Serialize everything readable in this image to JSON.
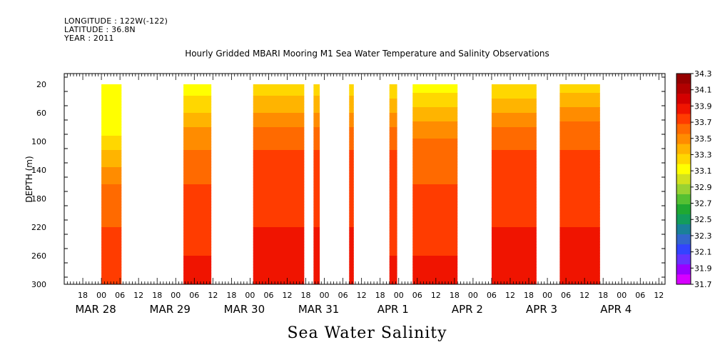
{
  "header": {
    "longitude": "LONGITUDE : 122W(-122)",
    "latitude": "LATITUDE : 36.8N",
    "year": "YEAR : 2011"
  },
  "chart_data": {
    "type": "heatmap",
    "title": "Hourly Gridded MBARI Mooring M1 Sea Water Temperature and Salinity Observations",
    "variable_label": "Sea Water Salinity",
    "ylabel": "DEPTH (m)",
    "y_axis": {
      "inverted": true,
      "ylim": [
        300,
        5
      ],
      "ticks": [
        20,
        60,
        100,
        140,
        180,
        220,
        260,
        300
      ]
    },
    "x_axis": {
      "units": "hours since 2011-03-27 12:00",
      "xlim": [
        0,
        194
      ],
      "hour_ticks": [
        "18",
        "00",
        "06",
        "12",
        "18",
        "00",
        "06",
        "12",
        "18",
        "00",
        "06",
        "12",
        "18",
        "00",
        "06",
        "12",
        "18",
        "00",
        "06",
        "12",
        "18",
        "00",
        "06",
        "12",
        "18",
        "00",
        "06",
        "12",
        "18",
        "00",
        "06",
        "12"
      ],
      "date_labels": [
        "MAR 28",
        "MAR 29",
        "MAR 30",
        "MAR 31",
        "APR  1",
        "APR  2",
        "APR  3",
        "APR  4"
      ]
    },
    "colorbar": {
      "levels": [
        31.7,
        31.9,
        32.1,
        32.3,
        32.5,
        32.7,
        32.9,
        33.1,
        33.3,
        33.5,
        33.7,
        33.9,
        34.1,
        34.3
      ],
      "labels": [
        "34.3",
        "34.1",
        "33.9",
        "33.7",
        "33.5",
        "33.3",
        "33.1",
        "32.9",
        "32.7",
        "32.5",
        "32.3",
        "32.1",
        "31.9",
        "31.7"
      ],
      "colors": [
        "#d600ff",
        "#9900ff",
        "#6633ff",
        "#3344ff",
        "#3366cc",
        "#1a8099",
        "#139c5c",
        "#1fa832",
        "#55c032",
        "#99d232",
        "#d2e11e",
        "#ffff00",
        "#ffd700",
        "#ffb400",
        "#ff8c00",
        "#ff6a00",
        "#ff3c00",
        "#f01400",
        "#d40000",
        "#b20000",
        "#960000"
      ]
    },
    "data_segments": [
      {
        "start": 12,
        "end": 18.5,
        "profile": [
          33.1,
          33.1,
          33.2,
          33.5,
          33.9,
          34.1,
          34.2,
          34.3
        ]
      },
      {
        "start": 38.5,
        "end": 47.5,
        "profile": [
          33.2,
          33.4,
          33.7,
          33.9,
          34.1,
          34.1,
          34.3,
          34.3
        ]
      },
      {
        "start": 61,
        "end": 77.5,
        "profile": [
          33.4,
          33.6,
          33.9,
          34.1,
          34.2,
          34.3,
          34.3,
          34.4
        ]
      },
      {
        "start": 80.5,
        "end": 82.5,
        "profile": [
          33.4,
          33.6,
          33.9,
          34.1,
          34.2,
          34.3,
          34.3,
          34.4
        ]
      },
      {
        "start": 92,
        "end": 93.5,
        "profile": [
          33.4,
          33.6,
          33.9,
          34.1,
          34.2,
          34.3,
          34.3,
          34.3
        ]
      },
      {
        "start": 105,
        "end": 107.5,
        "profile": [
          33.3,
          33.6,
          33.9,
          34.1,
          34.2,
          34.2,
          34.3,
          34.3
        ]
      },
      {
        "start": 112.5,
        "end": 127,
        "profile": [
          33.2,
          33.5,
          33.8,
          34.0,
          34.1,
          34.2,
          34.3,
          34.3
        ]
      },
      {
        "start": 138,
        "end": 152.5,
        "profile": [
          33.3,
          33.6,
          33.9,
          34.1,
          34.1,
          34.3,
          34.3,
          34.3
        ]
      },
      {
        "start": 160,
        "end": 173,
        "profile": [
          33.4,
          33.7,
          34.0,
          34.1,
          34.2,
          34.3,
          34.3,
          34.3
        ]
      }
    ],
    "profile_depths": [
      20,
      50,
      80,
      110,
      160,
      220,
      260,
      300
    ]
  }
}
